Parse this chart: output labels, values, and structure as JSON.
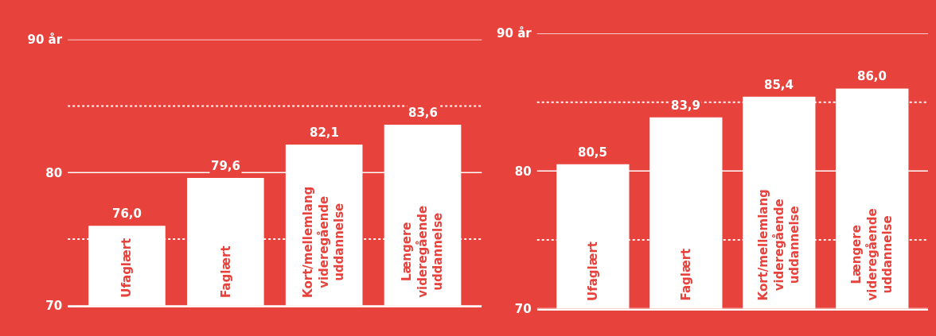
{
  "chart_data": [
    {
      "type": "bar",
      "categories": [
        "Ufaglært",
        "Faglært",
        "Kort/mellemlang\nvideregående\nuddannelse",
        "Længere\nvideregående\nuddannelse"
      ],
      "values": [
        76.0,
        79.6,
        82.1,
        83.6
      ],
      "color": "#ffffff",
      "value_labels": [
        "76,0",
        "79,6",
        "82,1",
        "83,6"
      ],
      "ylim": [
        70,
        90
      ],
      "yticks": [
        70,
        80,
        {
          "value": 90,
          "label": "90 år"
        }
      ],
      "grid": "y",
      "ref_lines": [
        {
          "axis": "y",
          "value": 75,
          "line_style": "dotted",
          "color": "#ffffff"
        },
        {
          "axis": "y",
          "value": 85,
          "line_style": "dotted",
          "color": "#ffffff"
        }
      ]
    },
    {
      "type": "bar",
      "categories": [
        "Ufaglært",
        "Faglært",
        "Kort/mellemlang\nvideregående\nuddannelse",
        "Længere\nvideregående\nuddannelse"
      ],
      "values": [
        80.5,
        83.9,
        85.4,
        86.0
      ],
      "color": "#ffffff",
      "value_labels": [
        "80,5",
        "83,9",
        "85,4",
        "86,0"
      ],
      "ylim": [
        70,
        90
      ],
      "yticks": [
        70,
        80,
        {
          "value": 90,
          "label": "90 år"
        }
      ],
      "grid": "y",
      "ref_lines": [
        {
          "axis": "y",
          "value": 75,
          "line_style": "dotted",
          "color": "#ffffff"
        },
        {
          "axis": "y",
          "value": 85,
          "line_style": "dotted",
          "color": "#ffffff"
        }
      ]
    }
  ]
}
